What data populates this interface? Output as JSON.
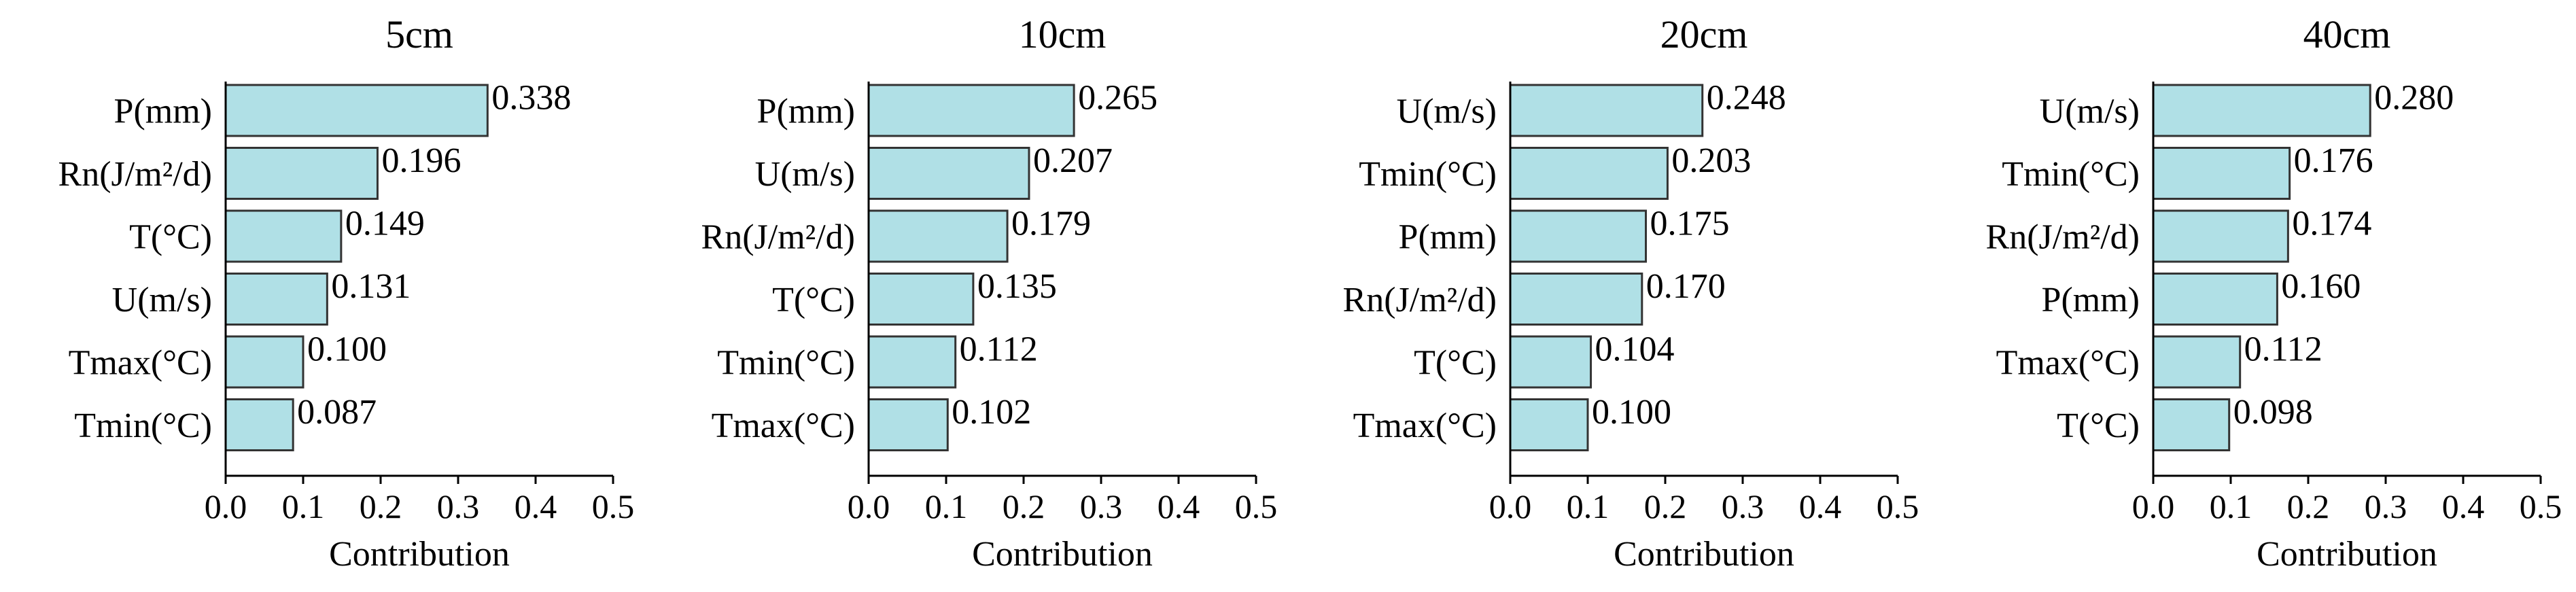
{
  "chart_data": [
    {
      "type": "bar",
      "orientation": "horizontal",
      "title": "5cm",
      "xlabel": "Contribution",
      "ylabel": "",
      "xlim": [
        0,
        0.5
      ],
      "xticks": [
        "0.0",
        "0.1",
        "0.2",
        "0.3",
        "0.4",
        "0.5"
      ],
      "categories": [
        "P(mm)",
        "Rn(J/m²/d)",
        "T(°C)",
        "U(m/s)",
        "Tmax(°C)",
        "Tmin(°C)"
      ],
      "values": [
        0.338,
        0.196,
        0.149,
        0.131,
        0.1,
        0.087
      ],
      "value_labels": [
        "0.338",
        "0.196",
        "0.149",
        "0.131",
        "0.100",
        "0.087"
      ],
      "bar_color": "#b0e0e6",
      "edge_color": "#333333",
      "grid": false
    },
    {
      "type": "bar",
      "orientation": "horizontal",
      "title": "10cm",
      "xlabel": "Contribution",
      "ylabel": "",
      "xlim": [
        0,
        0.5
      ],
      "xticks": [
        "0.0",
        "0.1",
        "0.2",
        "0.3",
        "0.4",
        "0.5"
      ],
      "categories": [
        "P(mm)",
        "U(m/s)",
        "Rn(J/m²/d)",
        "T(°C)",
        "Tmin(°C)",
        "Tmax(°C)"
      ],
      "values": [
        0.265,
        0.207,
        0.179,
        0.135,
        0.112,
        0.102
      ],
      "value_labels": [
        "0.265",
        "0.207",
        "0.179",
        "0.135",
        "0.112",
        "0.102"
      ],
      "bar_color": "#b0e0e6",
      "edge_color": "#333333",
      "grid": false
    },
    {
      "type": "bar",
      "orientation": "horizontal",
      "title": "20cm",
      "xlabel": "Contribution",
      "ylabel": "",
      "xlim": [
        0,
        0.5
      ],
      "xticks": [
        "0.0",
        "0.1",
        "0.2",
        "0.3",
        "0.4",
        "0.5"
      ],
      "categories": [
        "U(m/s)",
        "Tmin(°C)",
        "P(mm)",
        "Rn(J/m²/d)",
        "T(°C)",
        "Tmax(°C)"
      ],
      "values": [
        0.248,
        0.203,
        0.175,
        0.17,
        0.104,
        0.1
      ],
      "value_labels": [
        "0.248",
        "0.203",
        "0.175",
        "0.170",
        "0.104",
        "0.100"
      ],
      "bar_color": "#b0e0e6",
      "edge_color": "#333333",
      "grid": false
    },
    {
      "type": "bar",
      "orientation": "horizontal",
      "title": "40cm",
      "xlabel": "Contribution",
      "ylabel": "",
      "xlim": [
        0,
        0.5
      ],
      "xticks": [
        "0.0",
        "0.1",
        "0.2",
        "0.3",
        "0.4",
        "0.5"
      ],
      "categories": [
        "U(m/s)",
        "Tmin(°C)",
        "Rn(J/m²/d)",
        "P(mm)",
        "Tmax(°C)",
        "T(°C)"
      ],
      "values": [
        0.28,
        0.176,
        0.174,
        0.16,
        0.112,
        0.098
      ],
      "value_labels": [
        "0.280",
        "0.176",
        "0.174",
        "0.160",
        "0.112",
        "0.098"
      ],
      "bar_color": "#b0e0e6",
      "edge_color": "#333333",
      "grid": false
    }
  ]
}
